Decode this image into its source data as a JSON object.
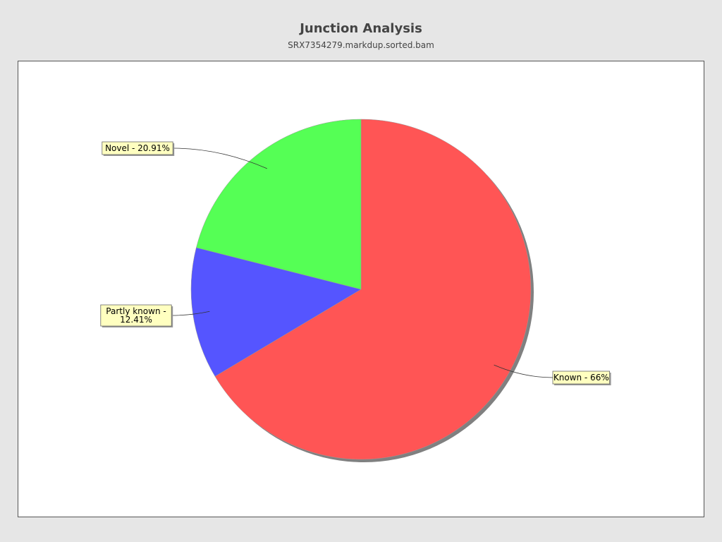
{
  "chart_data": {
    "type": "pie",
    "title": "Junction Analysis",
    "subtitle": "SRX7354279.markdup.sorted.bam",
    "start_angle": "top",
    "direction": "clockwise",
    "slices": [
      {
        "name": "Known",
        "value": 66,
        "label": "Known - 66%",
        "color": "#ff5555"
      },
      {
        "name": "Partly known",
        "value": 12.41,
        "label": "Partly known - 12.41%",
        "label_lines": [
          "Partly known -",
          "12.41%"
        ],
        "color": "#5555ff"
      },
      {
        "name": "Novel",
        "value": 20.91,
        "label": "Novel - 20.91%",
        "color": "#55ff55"
      }
    ],
    "label_background": "#ffffc0",
    "background": "#e6e6e6",
    "plot_background": "#ffffff"
  }
}
